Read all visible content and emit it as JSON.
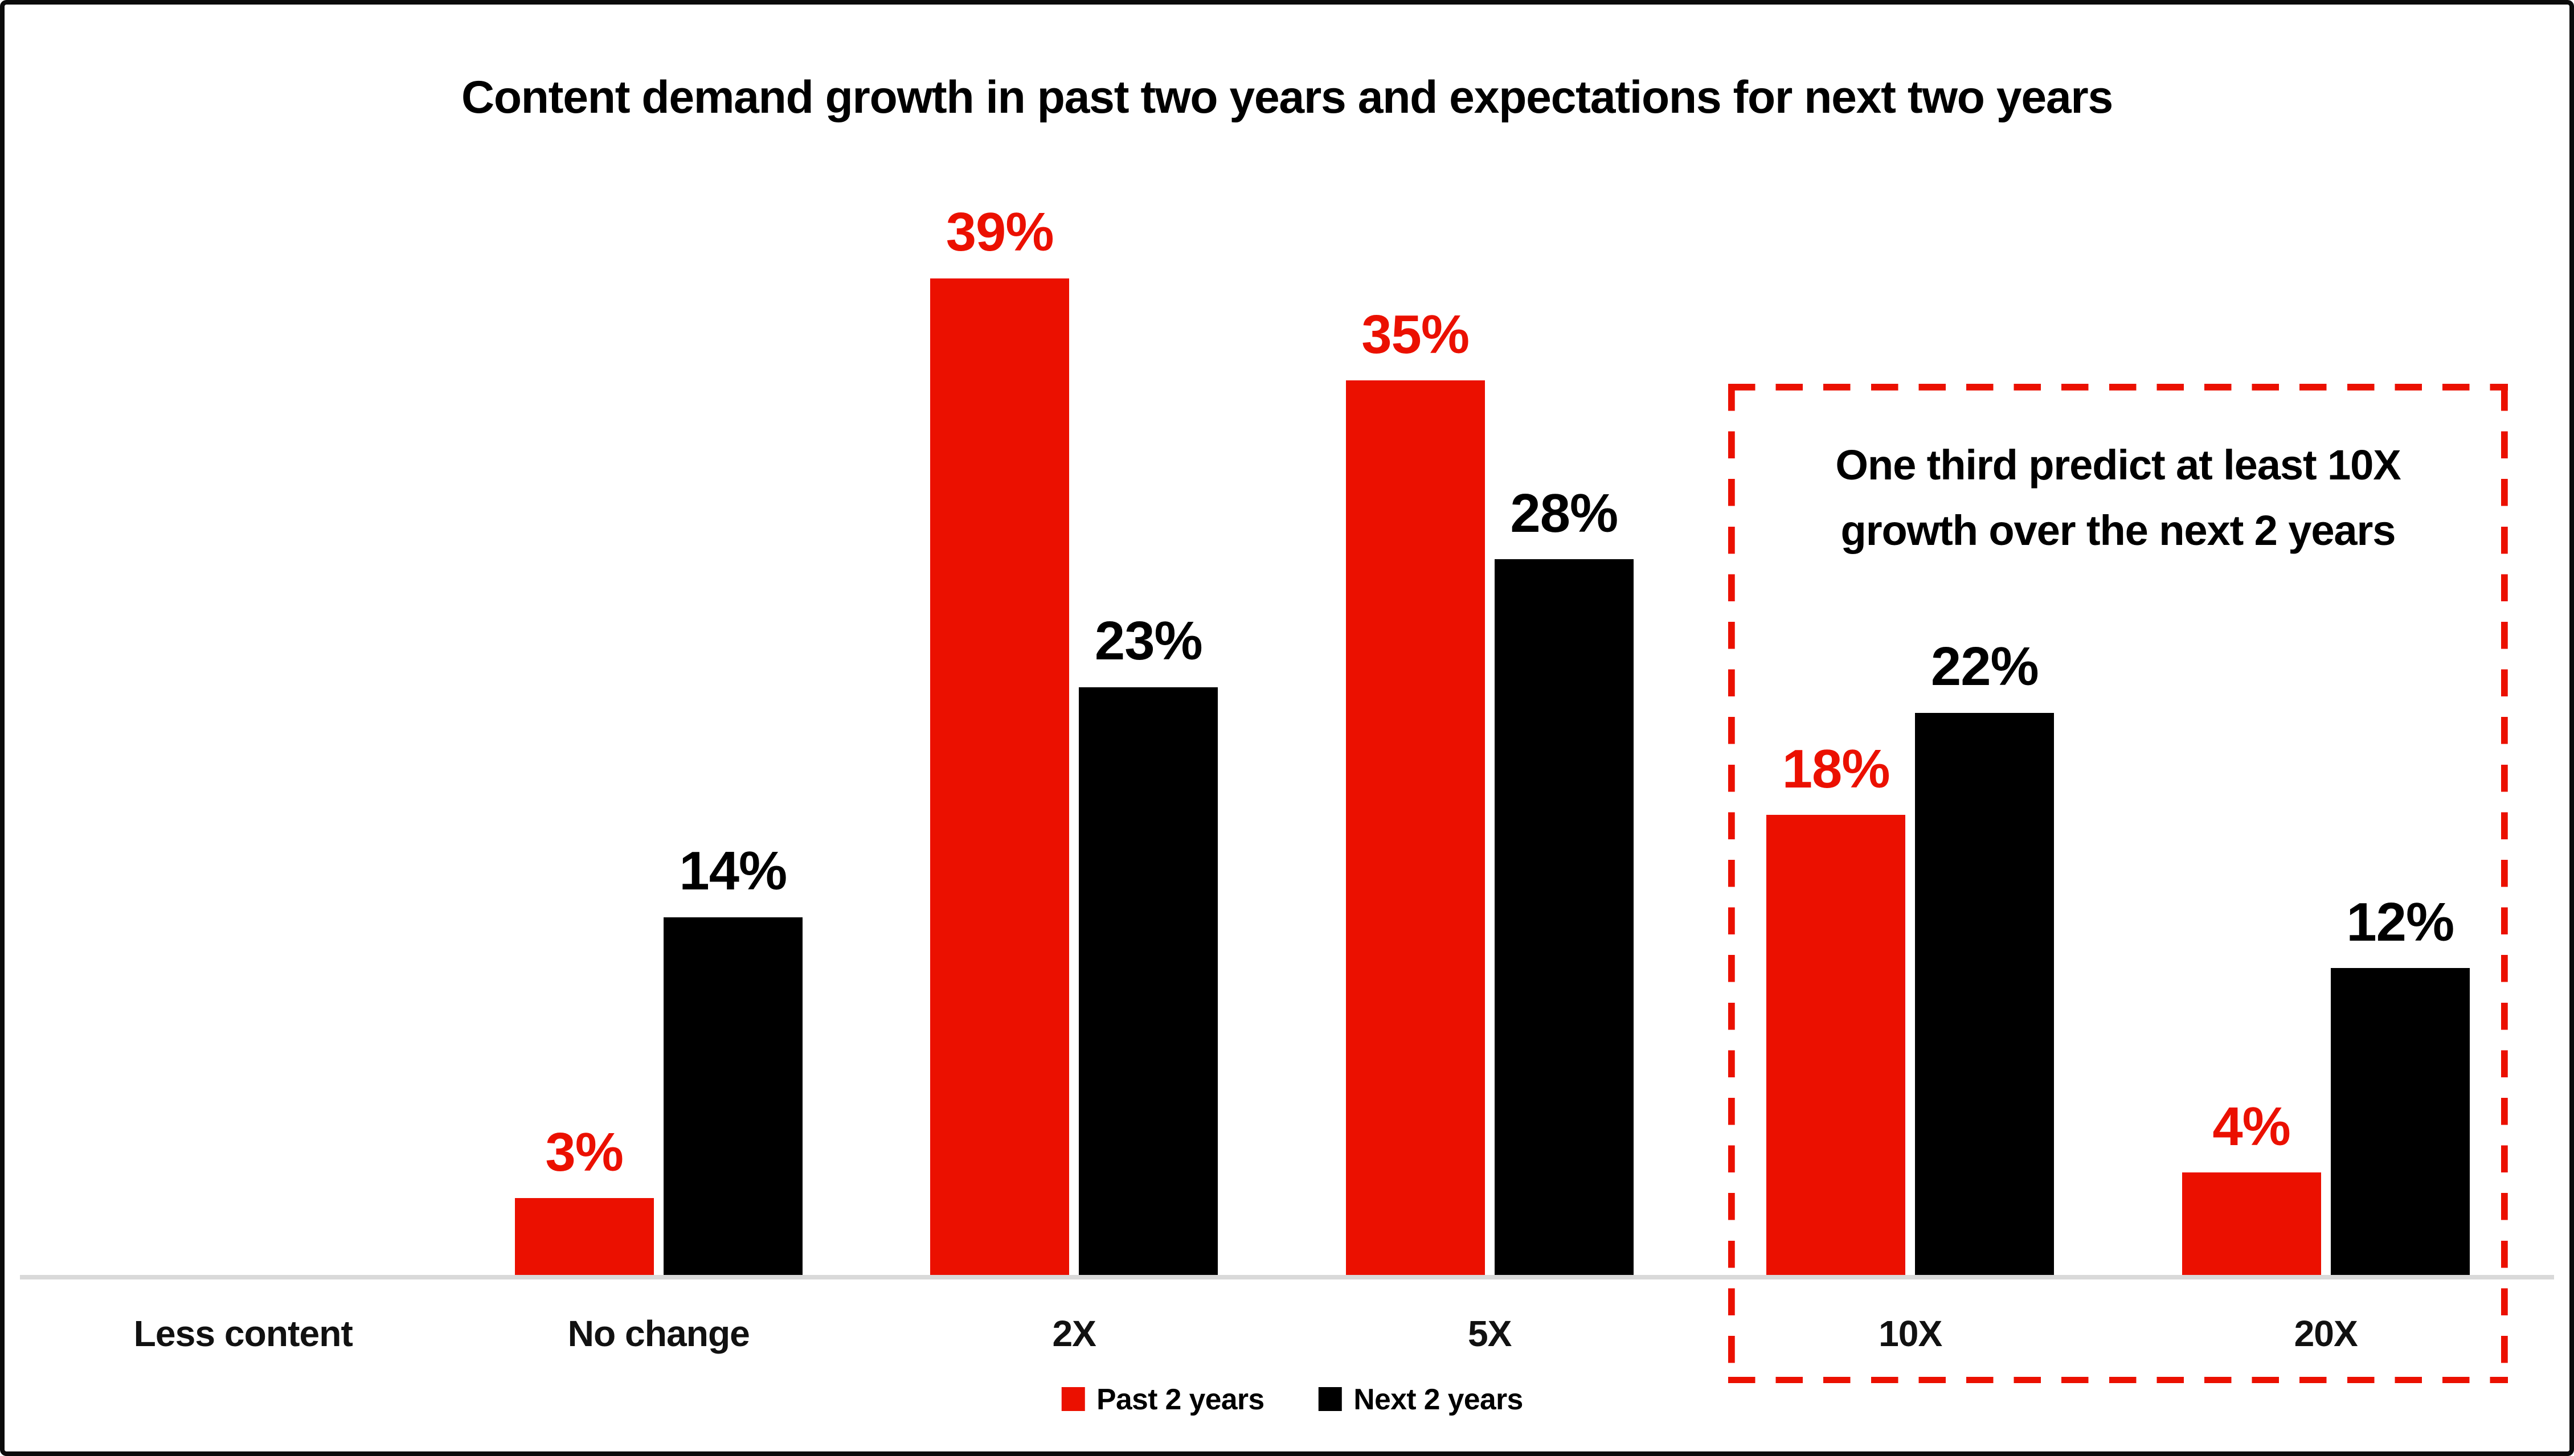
{
  "title": "Content demand growth in past two years and expectations for next two years",
  "colors": {
    "past_series": "#eb1000",
    "next_series": "#000000",
    "axis_line": "#d9d9d9",
    "annotation_border": "#eb1000",
    "frame_border": "#0b0b0b",
    "background": "#ffffff"
  },
  "annotation": {
    "line1": "One third predict at least 10X",
    "line2": "growth over the next 2 years"
  },
  "chart_data": {
    "type": "bar",
    "title": "Content demand growth in past two years and expectations for next two years",
    "categories": [
      "Less content",
      "No change",
      "2X",
      "5X",
      "10X",
      "20X"
    ],
    "series": [
      {
        "name": "Past 2 years",
        "color": "#eb1000",
        "values": [
          0,
          3,
          39,
          35,
          18,
          4
        ]
      },
      {
        "name": "Next 2 years",
        "color": "#000000",
        "values": [
          0,
          14,
          23,
          28,
          22,
          12
        ]
      }
    ],
    "value_suffix": "%",
    "data_labels": true,
    "xlabel": "",
    "ylabel": "",
    "ylim": [
      0,
      45
    ],
    "grid": false,
    "y_axis_visible": false,
    "legend_position": "bottom-center",
    "highlight_region": {
      "categories": [
        "10X",
        "20X"
      ],
      "style": "red-dashed-box",
      "note": "One third predict at least 10X growth over the next 2 years"
    }
  }
}
